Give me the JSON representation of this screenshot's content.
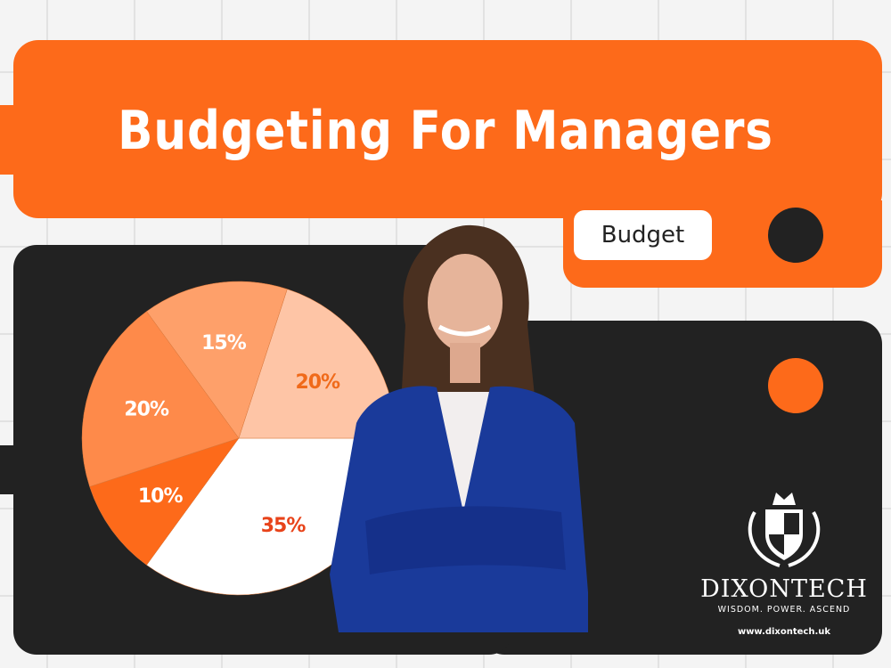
{
  "header": {
    "title": "Budgeting For Managers",
    "tag": "Budget"
  },
  "chart_data": {
    "type": "pie",
    "slices": [
      {
        "label": "35%",
        "value": 35,
        "color": "#ffffff",
        "text_color": "#e8431a"
      },
      {
        "label": "10%",
        "value": 10,
        "color": "#fd6a1a",
        "text_color": "#ffffff"
      },
      {
        "label": "20%",
        "value": 20,
        "color": "#fe8a4a",
        "text_color": "#ffffff"
      },
      {
        "label": "15%",
        "value": 15,
        "color": "#fea06a",
        "text_color": "#ffffff"
      },
      {
        "label": "20%",
        "value": 20,
        "color": "#fec5a6",
        "text_color": "#f06a1a"
      }
    ]
  },
  "logo": {
    "brand": "DIXONTECH",
    "motto": "WISDOM.  POWER.  ASCEND",
    "url": "www.dixontech.uk"
  },
  "colors": {
    "accent": "#fd6a1a",
    "dark": "#222222",
    "background": "#f4f4f4"
  }
}
